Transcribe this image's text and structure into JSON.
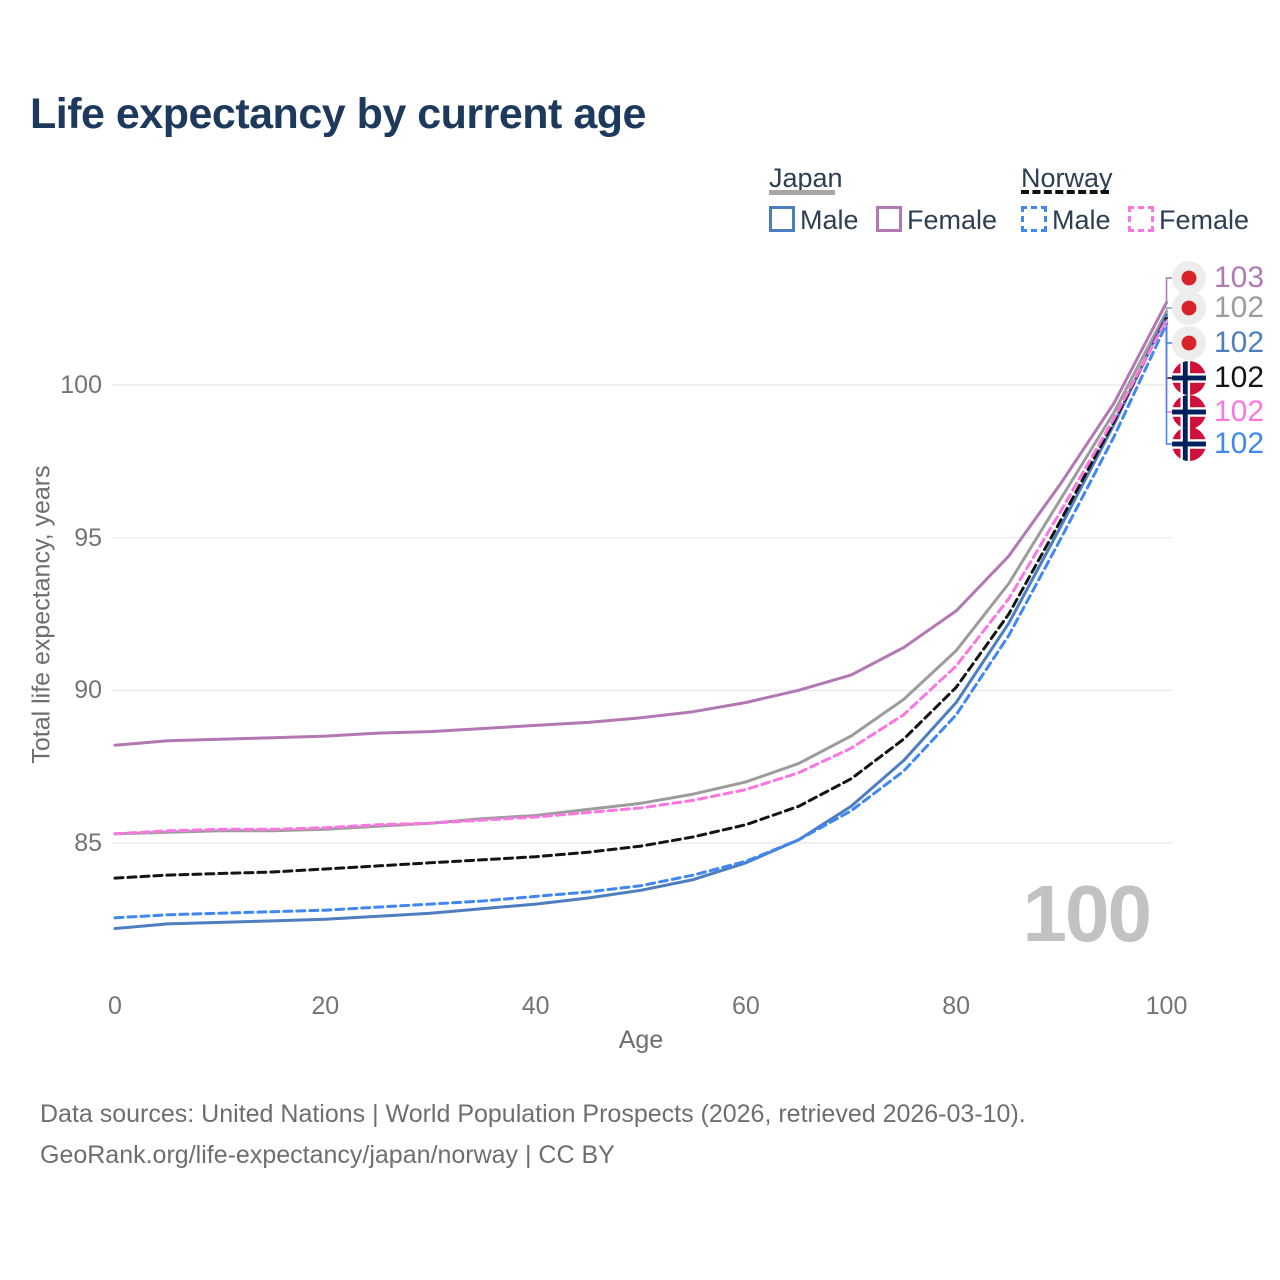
{
  "chart_data": {
    "type": "line",
    "title": "Life expectancy by current age",
    "xlabel": "Age",
    "ylabel": "Total life expectancy, years",
    "xlim": [
      0,
      100
    ],
    "ylim": [
      81.5,
      103.5
    ],
    "xticks": [
      0,
      20,
      40,
      60,
      80,
      100
    ],
    "yticks": [
      85,
      90,
      95,
      100
    ],
    "grid": "horizontal",
    "legend_position": "top-right",
    "x": [
      0,
      5,
      10,
      15,
      20,
      25,
      30,
      35,
      40,
      45,
      50,
      55,
      60,
      65,
      70,
      75,
      80,
      85,
      90,
      95,
      100
    ],
    "series": [
      {
        "name": "Japan Total",
        "country": "Japan",
        "sex": "Both",
        "color": "#9c9c9c",
        "dash": false,
        "values": [
          85.3,
          85.35,
          85.4,
          85.4,
          85.45,
          85.55,
          85.65,
          85.8,
          85.9,
          86.1,
          86.3,
          86.6,
          87.0,
          87.6,
          88.5,
          89.7,
          91.3,
          93.5,
          96.3,
          99.1,
          102.4
        ]
      },
      {
        "name": "Japan Female",
        "country": "Japan",
        "sex": "Female",
        "color": "#b377b4",
        "dash": false,
        "values": [
          88.2,
          88.35,
          88.4,
          88.45,
          88.5,
          88.6,
          88.65,
          88.75,
          88.85,
          88.95,
          89.1,
          89.3,
          89.6,
          90.0,
          90.5,
          91.4,
          92.6,
          94.4,
          96.8,
          99.4,
          102.7
        ]
      },
      {
        "name": "Japan Male",
        "country": "Japan",
        "sex": "Male",
        "color": "#4d7ebf",
        "dash": false,
        "values": [
          82.2,
          82.35,
          82.4,
          82.45,
          82.5,
          82.6,
          82.7,
          82.85,
          83.0,
          83.2,
          83.45,
          83.8,
          84.35,
          85.1,
          86.2,
          87.7,
          89.6,
          92.2,
          95.4,
          98.7,
          102.3
        ]
      },
      {
        "name": "Norway Male",
        "country": "Norway",
        "sex": "Male",
        "color": "#4187f2",
        "dash": true,
        "values": [
          82.55,
          82.65,
          82.7,
          82.75,
          82.8,
          82.9,
          83.0,
          83.1,
          83.25,
          83.4,
          83.6,
          83.95,
          84.4,
          85.1,
          86.05,
          87.35,
          89.2,
          91.8,
          95.0,
          98.3,
          102.0
        ]
      },
      {
        "name": "Norway Total",
        "country": "Norway",
        "sex": "Both",
        "color": "#141414",
        "dash": true,
        "values": [
          83.85,
          83.95,
          84.0,
          84.05,
          84.15,
          84.25,
          84.35,
          84.45,
          84.55,
          84.7,
          84.9,
          85.2,
          85.6,
          86.2,
          87.1,
          88.4,
          90.1,
          92.5,
          95.6,
          98.8,
          102.2
        ]
      },
      {
        "name": "Norway Female",
        "country": "Norway",
        "sex": "Female",
        "color": "#fb76e1",
        "dash": true,
        "values": [
          85.3,
          85.4,
          85.45,
          85.45,
          85.5,
          85.6,
          85.65,
          85.75,
          85.85,
          86.0,
          86.15,
          86.4,
          86.75,
          87.3,
          88.1,
          89.2,
          90.8,
          93.0,
          95.9,
          98.9,
          102.15
        ]
      }
    ],
    "end_rows": [
      {
        "value": "103",
        "flag": "japan",
        "series_index": 1,
        "y": 278
      },
      {
        "value": "102",
        "flag": "japan",
        "series_index": 0,
        "y": 308
      },
      {
        "value": "102",
        "flag": "japan",
        "series_index": 2,
        "y": 343
      },
      {
        "value": "102",
        "flag": "norway",
        "series_index": 4,
        "y": 378
      },
      {
        "value": "102",
        "flag": "norway",
        "series_index": 5,
        "y": 412
      },
      {
        "value": "102",
        "flag": "norway",
        "series_index": 3,
        "y": 444
      }
    ]
  },
  "legend": {
    "japan": {
      "label": "Japan",
      "male": "Male",
      "female": "Female",
      "underline_color": "#a6a6a6"
    },
    "norway": {
      "label": "Norway",
      "male": "Male",
      "female": "Female",
      "underline_color": "#111111"
    }
  },
  "watermark": "100",
  "footer": {
    "line1": "Data sources: United Nations | World Population Prospects (2026, retrieved 2026-03-10).",
    "line2": "GeoRank.org/life-expectancy/japan/norway | CC BY"
  },
  "colors": {
    "title": "#1d395c",
    "axis_text": "#747474",
    "gridline": "#e8e8e8",
    "japan_flag_red": "#d8232a",
    "norway_flag_red": "#d0103a",
    "norway_flag_blue": "#00205b"
  }
}
